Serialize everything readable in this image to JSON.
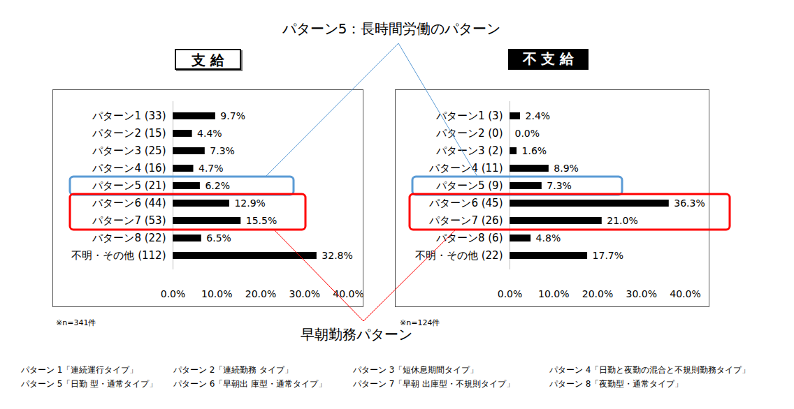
{
  "chart_data": [
    {
      "type": "bar",
      "orientation": "horizontal",
      "title": "支 給",
      "categories": [
        "パターン1 (33)",
        "パターン2 (15)",
        "パターン3 (25)",
        "パターン4 (16)",
        "パターン5 (21)",
        "パターン6 (44)",
        "パターン7 (53)",
        "パターン8 (22)",
        "不明・その他 (112)"
      ],
      "values": [
        9.7,
        4.4,
        7.3,
        4.7,
        6.2,
        12.9,
        15.5,
        6.5,
        32.8
      ],
      "value_labels": [
        "9.7%",
        "4.4%",
        "7.3%",
        "4.7%",
        "6.2%",
        "12.9%",
        "15.5%",
        "6.5%",
        "32.8%"
      ],
      "color": "#000000",
      "data_labels": true,
      "xlim": [
        0,
        40
      ],
      "xticks": [
        {
          "value": 0,
          "label": "0.0%"
        },
        {
          "value": 10,
          "label": "10.0%"
        },
        {
          "value": 20,
          "label": "20.0%"
        },
        {
          "value": 30,
          "label": "30.0%"
        },
        {
          "value": 40,
          "label": "40.0%"
        }
      ],
      "footnote": "※n=341件"
    },
    {
      "type": "bar",
      "orientation": "horizontal",
      "title": "不 支 給",
      "categories": [
        "パターン1 (3)",
        "パターン2 (0)",
        "パターン3 (2)",
        "パターン4 (11)",
        "パターン5 (9)",
        "パターン6 (45)",
        "パターン7 (26)",
        "パターン8 (6)",
        "不明・その他 (22)"
      ],
      "values": [
        2.4,
        0.0,
        1.6,
        8.9,
        7.3,
        36.3,
        21.0,
        4.8,
        17.7
      ],
      "value_labels": [
        "2.4%",
        "0.0%",
        "1.6%",
        "8.9%",
        "7.3%",
        "36.3%",
        "21.0%",
        "4.8%",
        "17.7%"
      ],
      "color": "#000000",
      "data_labels": true,
      "xlim": [
        0,
        40
      ],
      "xticks": [
        {
          "value": 0,
          "label": "0.0%"
        },
        {
          "value": 10,
          "label": "10.0%"
        },
        {
          "value": 20,
          "label": "20.0%"
        },
        {
          "value": 30,
          "label": "30.0%"
        },
        {
          "value": 40,
          "label": "40.0%"
        }
      ],
      "footnote": "※n=124件"
    }
  ],
  "annotations": [
    {
      "text": "パターン5：長時間労働のパターン",
      "color": "#5b9bd5",
      "targets": [
        [
          "パターン5 (21)"
        ],
        [
          "パターン5 (9)"
        ]
      ]
    },
    {
      "text": "早朝勤務パターン",
      "color": "#ff0000",
      "targets": [
        [
          "パターン6 (44)",
          "パターン7 (53)"
        ],
        [
          "パターン6 (45)",
          "パターン7 (26)"
        ]
      ]
    }
  ],
  "footnotes": [
    "パターン 1「連続運行タイプ」",
    "パターン 2「連続勤務 タイプ」",
    "パターン 3「短休息期間タイプ」",
    "パターン 4「日勤と夜勤の混合と不規則勤務タイプ」",
    "パターン 5「日勤 型・通常タイプ」",
    "パターン 6「早朝出 庫型・通常タイプ」",
    "パターン 7「早朝 出庫型・不規則タイプ」",
    "パターン 8「夜勤型・通常タイプ」"
  ]
}
